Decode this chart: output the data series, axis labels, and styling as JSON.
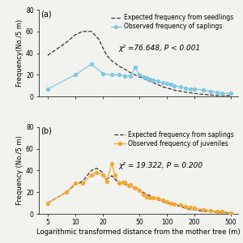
{
  "panel_a": {
    "label": "(a)",
    "expected_label": "Expected frequency from seedlings",
    "observed_label": "Observed frequency of saplings",
    "observed_color": "#7EC8E3",
    "expected_color": "#333333",
    "chi2_text": "χ² =76.648, P < 0.001",
    "x_observed": [
      5,
      10,
      15,
      20,
      25,
      30,
      35,
      40,
      45,
      50,
      55,
      60,
      65,
      70,
      80,
      90,
      100,
      110,
      120,
      140,
      160,
      180,
      200,
      250,
      300,
      350,
      400,
      500
    ],
    "y_observed": [
      7,
      20,
      30,
      21,
      20,
      20,
      19,
      19,
      27,
      20,
      18,
      17,
      16,
      15,
      14,
      13,
      12,
      11,
      10,
      9,
      8,
      7,
      7,
      6,
      5,
      4,
      3,
      3
    ],
    "x_expected": [
      5,
      8,
      10,
      12,
      15,
      18,
      20,
      22,
      25,
      28,
      30,
      35,
      40,
      45,
      50,
      55,
      60,
      65,
      70,
      80,
      90,
      100,
      110,
      120,
      140,
      160,
      180,
      200,
      250,
      300,
      350,
      400,
      500
    ],
    "y_expected": [
      38,
      50,
      57,
      60,
      60,
      53,
      45,
      38,
      33,
      30,
      28,
      25,
      22,
      20,
      18,
      17,
      15,
      14,
      13,
      11,
      9,
      8,
      7,
      6,
      5,
      4,
      3.5,
      3,
      2,
      1.5,
      1,
      1,
      1
    ],
    "ylabel": "Frequency(No./5 m)",
    "ylim": [
      0,
      80
    ],
    "yticks": [
      0,
      20,
      40,
      60,
      80
    ]
  },
  "panel_b": {
    "label": "(b)",
    "expected_label": "Expected frequency from saplings",
    "observed_label": "Observed frequency of juveniles",
    "observed_color": "#F4A830",
    "expected_color": "#333333",
    "chi2_text": "χ² = 19.322, P = 0.200",
    "x_observed": [
      5,
      8,
      10,
      12,
      15,
      17,
      20,
      22,
      25,
      27,
      30,
      33,
      35,
      38,
      40,
      45,
      50,
      55,
      60,
      65,
      70,
      80,
      90,
      100,
      110,
      120,
      140,
      160,
      180,
      200,
      250,
      300,
      350,
      400,
      500
    ],
    "y_observed": [
      10,
      20,
      28,
      28,
      36,
      38,
      36,
      30,
      46,
      36,
      28,
      29,
      29,
      26,
      27,
      24,
      22,
      18,
      16,
      15,
      15,
      14,
      13,
      11,
      10,
      9,
      8,
      7,
      6,
      5,
      4,
      3,
      2,
      2,
      1
    ],
    "x_expected": [
      5,
      8,
      10,
      12,
      15,
      17,
      20,
      22,
      25,
      27,
      30,
      33,
      35,
      38,
      40,
      45,
      50,
      55,
      60,
      65,
      70,
      80,
      90,
      100,
      110,
      120,
      140,
      160,
      180,
      200,
      250,
      300,
      350,
      400,
      500
    ],
    "y_expected": [
      10,
      20,
      27,
      30,
      40,
      42,
      38,
      32,
      35,
      32,
      28,
      28,
      27,
      26,
      25,
      23,
      22,
      20,
      18,
      17,
      15,
      13,
      11,
      10,
      9,
      8,
      7,
      5,
      4,
      3.5,
      2.5,
      2,
      1.5,
      1,
      1
    ],
    "ylabel": "Frequency (No./5 m)",
    "ylim": [
      0,
      80
    ],
    "yticks": [
      0,
      20,
      40,
      60,
      80
    ]
  },
  "xlabel": "Logarithmic transformed distance from the mother tree (m)",
  "xticks": [
    5,
    10,
    20,
    50,
    100,
    200,
    500
  ],
  "xlim": [
    4,
    600
  ],
  "background_color": "#f2f2ee",
  "fontsize_label": 6,
  "fontsize_tick": 5.5,
  "fontsize_legend": 5.5,
  "fontsize_annot": 6.5
}
